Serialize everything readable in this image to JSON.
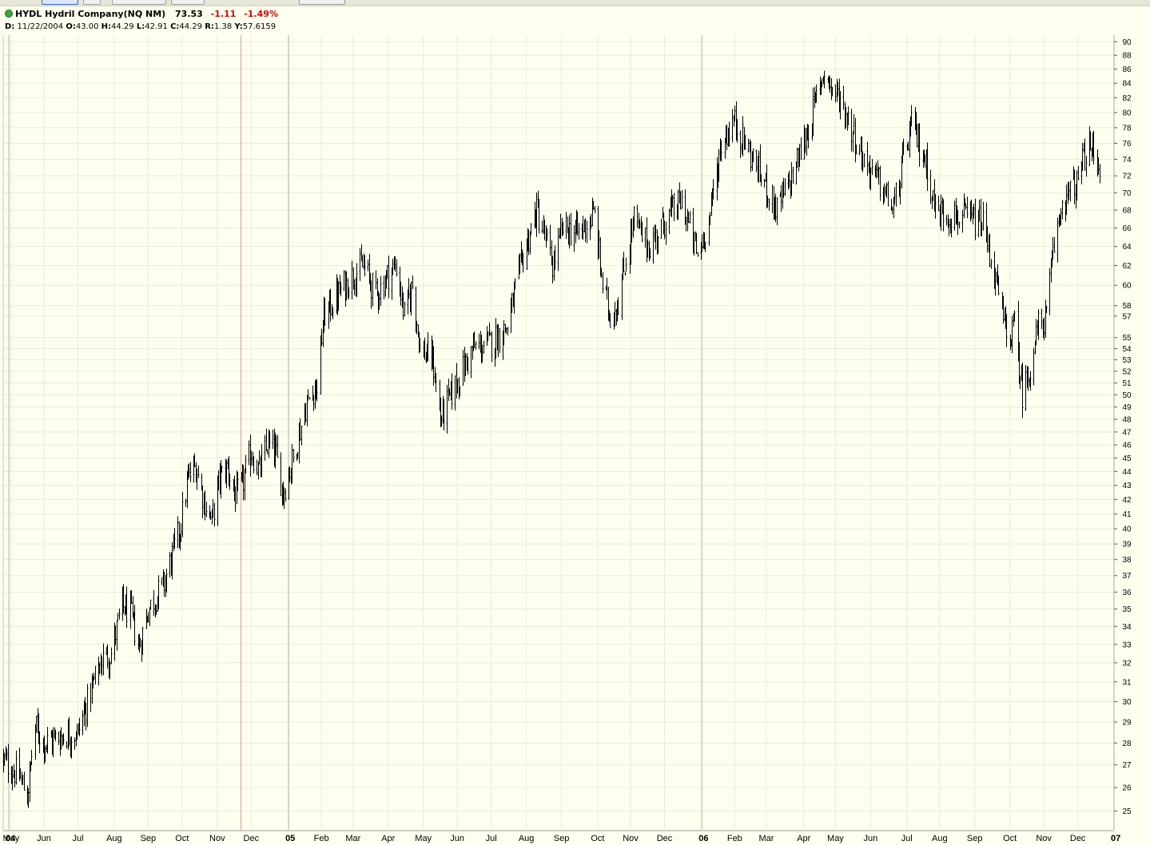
{
  "header": {
    "symbol": "HYDL",
    "company": "Hydril Company(NQ NM)",
    "last": "73.53",
    "change": "-1.11",
    "change_pct": "-1.49%",
    "d_label": "D:",
    "date": "11/22/2004",
    "o_label": "O:",
    "open": "43.00",
    "h_label": "H:",
    "high": "44.29",
    "l_label": "L:",
    "low": "42.91",
    "c_label": "C:",
    "close": "44.29",
    "r_label": "R:",
    "range": "1.38",
    "y_label": "Y:",
    "y_value": "57.6159"
  },
  "colors": {
    "background": "#fffff0",
    "grid": "#eaeadb",
    "bars": "#000000",
    "cursor": "#d4a080",
    "negative": "#e00000",
    "status": "#38a838"
  },
  "chart_data": {
    "type": "line",
    "subtype": "ohlc-bar",
    "title": "HYDL Hydril Company(NQ NM)",
    "scale": "log",
    "ylim": [
      24.2,
      91
    ],
    "y_ticks": [
      25,
      26,
      27,
      28,
      29,
      30,
      31,
      32,
      33,
      34,
      35,
      36,
      37,
      38,
      39,
      40,
      41,
      42,
      43,
      44,
      45,
      46,
      47,
      48,
      49,
      50,
      51,
      52,
      53,
      54,
      55,
      57,
      58,
      60,
      62,
      64,
      66,
      68,
      70,
      72,
      74,
      76,
      78,
      80,
      82,
      84,
      86,
      88,
      90
    ],
    "x_ticks": [
      {
        "label": "04",
        "bold": true,
        "date": "2004-05-01"
      },
      {
        "label": "May",
        "date": "2004-05-03"
      },
      {
        "label": "Jun",
        "date": "2004-06-01"
      },
      {
        "label": "Jul",
        "date": "2004-07-01"
      },
      {
        "label": "Aug",
        "date": "2004-08-02"
      },
      {
        "label": "Sep",
        "date": "2004-09-01"
      },
      {
        "label": "Oct",
        "date": "2004-10-01"
      },
      {
        "label": "Nov",
        "date": "2004-11-01"
      },
      {
        "label": "Dec",
        "date": "2004-12-01"
      },
      {
        "label": "05",
        "bold": true,
        "date": "2005-01-03"
      },
      {
        "label": "Feb",
        "date": "2005-02-01"
      },
      {
        "label": "Mar",
        "date": "2005-03-01"
      },
      {
        "label": "Apr",
        "date": "2005-04-01"
      },
      {
        "label": "May",
        "date": "2005-05-02"
      },
      {
        "label": "Jun",
        "date": "2005-06-01"
      },
      {
        "label": "Jul",
        "date": "2005-07-01"
      },
      {
        "label": "Aug",
        "date": "2005-08-01"
      },
      {
        "label": "Sep",
        "date": "2005-09-01"
      },
      {
        "label": "Oct",
        "date": "2005-10-03"
      },
      {
        "label": "Nov",
        "date": "2005-11-01"
      },
      {
        "label": "Dec",
        "date": "2005-12-01"
      },
      {
        "label": "06",
        "bold": true,
        "date": "2006-01-03"
      },
      {
        "label": "Feb",
        "date": "2006-02-01"
      },
      {
        "label": "Mar",
        "date": "2006-03-01"
      },
      {
        "label": "Apr",
        "date": "2006-04-03"
      },
      {
        "label": "May",
        "date": "2006-05-01"
      },
      {
        "label": "Jun",
        "date": "2006-06-01"
      },
      {
        "label": "Jul",
        "date": "2006-07-03"
      },
      {
        "label": "Aug",
        "date": "2006-08-01"
      },
      {
        "label": "Sep",
        "date": "2006-09-01"
      },
      {
        "label": "Oct",
        "date": "2006-10-02"
      },
      {
        "label": "Nov",
        "date": "2006-11-01"
      },
      {
        "label": "Dec",
        "date": "2006-12-01"
      },
      {
        "label": "07",
        "bold": true,
        "date": "2007-01-02"
      }
    ],
    "x_range": [
      "2004-04-26",
      "2007-01-02"
    ],
    "cursor_date": "2004-11-22",
    "grid": true,
    "series": [
      {
        "points": [
          [
            "2004-04-26",
            27.2
          ],
          [
            "2004-05-10",
            26.5
          ],
          [
            "2004-05-17",
            25.6
          ],
          [
            "2004-05-24",
            28.8
          ],
          [
            "2004-06-01",
            28.0
          ],
          [
            "2004-06-15",
            28.3
          ],
          [
            "2004-07-01",
            28.5
          ],
          [
            "2004-07-12",
            30.5
          ],
          [
            "2004-07-22",
            32.2
          ],
          [
            "2004-07-30",
            32.5
          ],
          [
            "2004-08-09",
            35.2
          ],
          [
            "2004-08-16",
            34.8
          ],
          [
            "2004-08-24",
            32.8
          ],
          [
            "2004-09-01",
            35.0
          ],
          [
            "2004-09-15",
            36.5
          ],
          [
            "2004-09-29",
            40.0
          ],
          [
            "2004-10-06",
            43.5
          ],
          [
            "2004-10-13",
            44.4
          ],
          [
            "2004-10-20",
            42.0
          ],
          [
            "2004-10-27",
            40.5
          ],
          [
            "2004-11-03",
            43.5
          ],
          [
            "2004-11-10",
            44.3
          ],
          [
            "2004-11-17",
            42.2
          ],
          [
            "2004-11-23",
            43.0
          ],
          [
            "2004-12-01",
            45.5
          ],
          [
            "2004-12-08",
            44.0
          ],
          [
            "2004-12-15",
            46.0
          ],
          [
            "2004-12-22",
            45.5
          ],
          [
            "2004-12-29",
            42.5
          ],
          [
            "2005-01-07",
            45.0
          ],
          [
            "2005-01-18",
            49.0
          ],
          [
            "2005-01-28",
            51.0
          ],
          [
            "2005-02-03",
            57.0
          ],
          [
            "2005-02-15",
            59.0
          ],
          [
            "2005-02-28",
            61.0
          ],
          [
            "2005-03-10",
            62.0
          ],
          [
            "2005-03-21",
            59.0
          ],
          [
            "2005-03-31",
            61.0
          ],
          [
            "2005-04-08",
            62.0
          ],
          [
            "2005-04-15",
            57.0
          ],
          [
            "2005-04-22",
            60.0
          ],
          [
            "2005-04-29",
            54.0
          ],
          [
            "2005-05-10",
            53.0
          ],
          [
            "2005-05-17",
            48.0
          ],
          [
            "2005-05-31",
            51.0
          ],
          [
            "2005-06-15",
            54.0
          ],
          [
            "2005-06-30",
            54.5
          ],
          [
            "2005-07-15",
            56.0
          ],
          [
            "2005-07-29",
            63.0
          ],
          [
            "2005-08-10",
            68.0
          ],
          [
            "2005-08-24",
            62.0
          ],
          [
            "2005-09-02",
            66.0
          ],
          [
            "2005-09-16",
            65.5
          ],
          [
            "2005-09-30",
            67.5
          ],
          [
            "2005-10-07",
            60.0
          ],
          [
            "2005-10-14",
            57.0
          ],
          [
            "2005-10-21",
            58.5
          ],
          [
            "2005-11-04",
            67.0
          ],
          [
            "2005-11-11",
            65.0
          ],
          [
            "2005-11-18",
            64.0
          ],
          [
            "2005-12-02",
            67.0
          ],
          [
            "2005-12-16",
            69.0
          ],
          [
            "2005-12-30",
            63.0
          ],
          [
            "2006-01-10",
            67.5
          ],
          [
            "2006-01-20",
            76.0
          ],
          [
            "2006-01-31",
            79.0
          ],
          [
            "2006-02-10",
            76.0
          ],
          [
            "2006-02-24",
            72.0
          ],
          [
            "2006-03-10",
            68.0
          ],
          [
            "2006-03-24",
            72.0
          ],
          [
            "2006-04-07",
            78.0
          ],
          [
            "2006-04-21",
            86.0
          ],
          [
            "2006-04-28",
            83.0
          ],
          [
            "2006-05-05",
            82.0
          ],
          [
            "2006-05-12",
            79.0
          ],
          [
            "2006-05-26",
            74.0
          ],
          [
            "2006-06-09",
            71.0
          ],
          [
            "2006-06-21",
            68.0
          ],
          [
            "2006-06-30",
            74.0
          ],
          [
            "2006-07-07",
            78.5
          ],
          [
            "2006-07-21",
            73.0
          ],
          [
            "2006-07-28",
            68.0
          ],
          [
            "2006-08-11",
            67.5
          ],
          [
            "2006-08-25",
            67.0
          ],
          [
            "2006-09-08",
            66.5
          ],
          [
            "2006-09-22",
            59.0
          ],
          [
            "2006-09-29",
            55.0
          ],
          [
            "2006-10-06",
            56.0
          ],
          [
            "2006-10-13",
            50.0
          ],
          [
            "2006-10-20",
            52.5
          ],
          [
            "2006-10-27",
            56.0
          ],
          [
            "2006-11-03",
            57.0
          ],
          [
            "2006-11-10",
            64.0
          ],
          [
            "2006-11-17",
            69.0
          ],
          [
            "2006-11-30",
            71.0
          ],
          [
            "2006-12-08",
            75.0
          ],
          [
            "2006-12-14",
            75.2
          ],
          [
            "2006-12-20",
            73.5
          ]
        ]
      }
    ]
  }
}
